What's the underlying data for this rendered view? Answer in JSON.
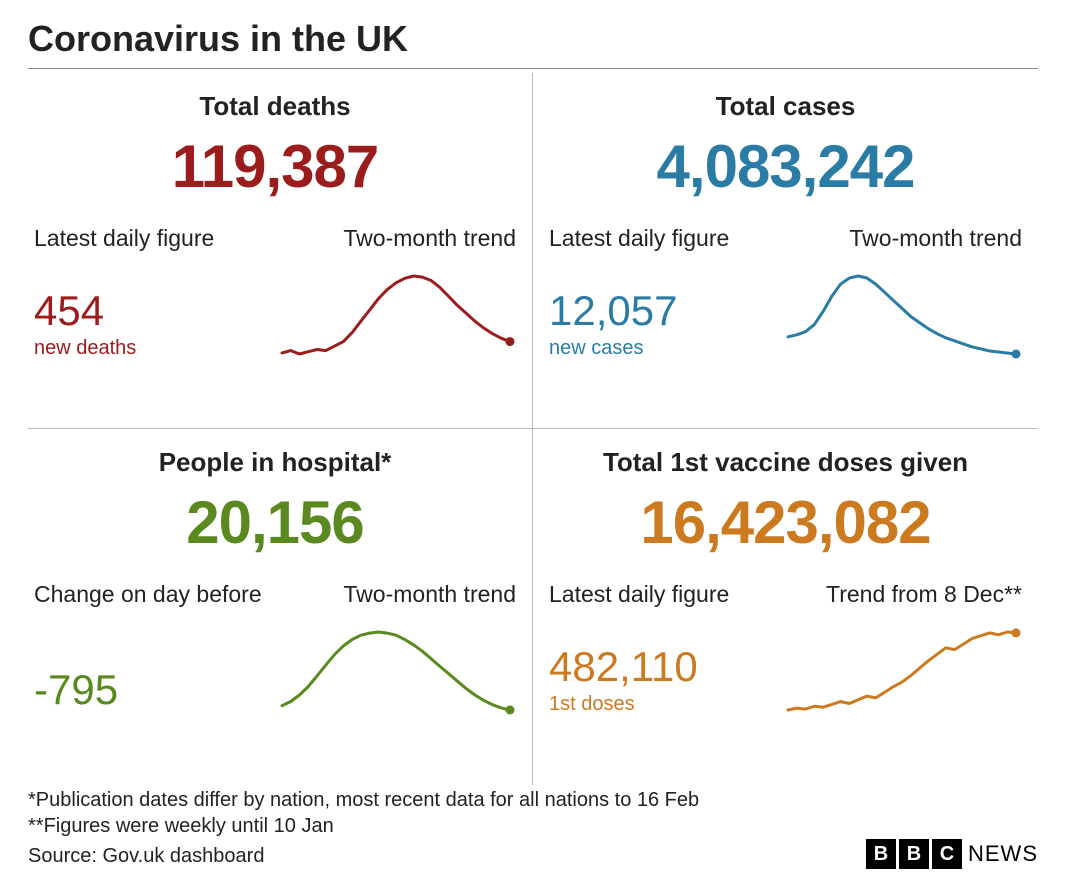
{
  "title": "Coronavirus in the UK",
  "text_color": "#222222",
  "background_color": "#ffffff",
  "divider_color": "#bbbbbb",
  "panels": {
    "deaths": {
      "title": "Total deaths",
      "total": "119,387",
      "sub_left_label": "Latest daily figure",
      "sub_right_label": "Two-month trend",
      "daily_value": "454",
      "daily_label": "new deaths",
      "color": "#9b1c1c",
      "sparkline": {
        "type": "line",
        "stroke_width": 3,
        "end_dot_radius": 4.5,
        "points": [
          20,
          22,
          19,
          21,
          23,
          22,
          26,
          30,
          38,
          48,
          58,
          68,
          76,
          82,
          86,
          88,
          87,
          84,
          78,
          70,
          62,
          55,
          48,
          42,
          37,
          33,
          30
        ]
      }
    },
    "cases": {
      "title": "Total cases",
      "total": "4,083,242",
      "sub_left_label": "Latest daily figure",
      "sub_right_label": "Two-month trend",
      "daily_value": "12,057",
      "daily_label": "new cases",
      "color": "#2a7ca4",
      "sparkline": {
        "type": "line",
        "stroke_width": 3,
        "end_dot_radius": 4.5,
        "points": [
          30,
          32,
          35,
          42,
          55,
          70,
          82,
          88,
          90,
          88,
          82,
          74,
          66,
          58,
          50,
          44,
          38,
          33,
          29,
          26,
          23,
          20,
          18,
          16,
          15,
          14,
          13
        ]
      }
    },
    "hospital": {
      "title": "People in hospital*",
      "total": "20,156",
      "sub_left_label": "Change on day before",
      "sub_right_label": "Two-month trend",
      "daily_value": "-795",
      "daily_label": "",
      "color": "#5a8a1f",
      "sparkline": {
        "type": "line",
        "stroke_width": 3,
        "end_dot_radius": 4.5,
        "points": [
          20,
          24,
          30,
          38,
          48,
          58,
          68,
          76,
          82,
          86,
          88,
          89,
          88,
          86,
          82,
          77,
          71,
          64,
          57,
          50,
          43,
          36,
          30,
          25,
          21,
          18,
          16
        ]
      }
    },
    "vaccine": {
      "title": "Total 1st vaccine doses given",
      "total": "16,423,082",
      "sub_left_label": "Latest daily figure",
      "sub_right_label": "Trend from 8 Dec**",
      "daily_value": "482,110",
      "daily_label": "1st doses",
      "color": "#cc7a1f",
      "sparkline": {
        "type": "line",
        "stroke_width": 3,
        "end_dot_radius": 4.5,
        "points": [
          5,
          7,
          6,
          9,
          8,
          11,
          14,
          12,
          16,
          20,
          18,
          24,
          30,
          35,
          42,
          50,
          58,
          65,
          72,
          70,
          76,
          82,
          85,
          88,
          86,
          89,
          88
        ]
      }
    }
  },
  "footer": {
    "note1": "*Publication dates differ by nation, most recent data for all nations to 16 Feb",
    "note2": "**Figures were weekly until 10 Jan",
    "source": "Source: Gov.uk dashboard",
    "logo_letters": [
      "B",
      "B",
      "C"
    ],
    "logo_text": "NEWS"
  }
}
